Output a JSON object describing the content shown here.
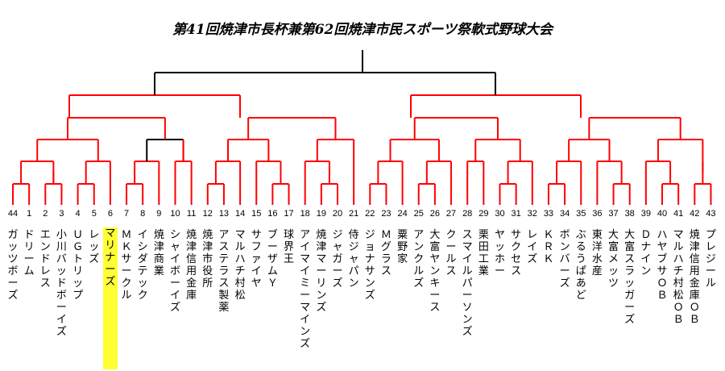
{
  "title": "第41回焼津市長杯兼第62回焼津市民スポーツ祭軟式野球大会",
  "colors": {
    "winner_path": "#ff0000",
    "bracket_line": "#000000",
    "highlight": "#ffff33"
  },
  "teams": [
    {
      "seed": "44",
      "name": "ガッツボーズ"
    },
    {
      "seed": "1",
      "name": "ドリーム"
    },
    {
      "seed": "2",
      "name": "エンドレス"
    },
    {
      "seed": "3",
      "name": "小川バッドボーイズ"
    },
    {
      "seed": "4",
      "name": "ＵＧトリップ"
    },
    {
      "seed": "5",
      "name": "レッズ"
    },
    {
      "seed": "6",
      "name": "マリナーズ",
      "highlight": true
    },
    {
      "seed": "7",
      "name": "ＭＫサークル"
    },
    {
      "seed": "8",
      "name": "イシダテック"
    },
    {
      "seed": "9",
      "name": "焼津商業"
    },
    {
      "seed": "10",
      "name": "シャイボーイズ"
    },
    {
      "seed": "11",
      "name": "焼津信用金庫"
    },
    {
      "seed": "12",
      "name": "焼津市役所"
    },
    {
      "seed": "13",
      "name": "アステラス製薬"
    },
    {
      "seed": "14",
      "name": "マルハチ村松"
    },
    {
      "seed": "15",
      "name": "サファイヤ"
    },
    {
      "seed": "16",
      "name": "ブーザムＹ"
    },
    {
      "seed": "17",
      "name": "球界王"
    },
    {
      "seed": "18",
      "name": "アイマイミーマインズ"
    },
    {
      "seed": "19",
      "name": "焼津マーリンズ"
    },
    {
      "seed": "20",
      "name": "ジャガーズ"
    },
    {
      "seed": "21",
      "name": "侍ジャパン"
    },
    {
      "seed": "22",
      "name": "ジョナサンズ"
    },
    {
      "seed": "23",
      "name": "Ｍグラス"
    },
    {
      "seed": "24",
      "name": "粟野家"
    },
    {
      "seed": "25",
      "name": "アンクルズ"
    },
    {
      "seed": "26",
      "name": "大富ヤンキース"
    },
    {
      "seed": "27",
      "name": "クールス"
    },
    {
      "seed": "28",
      "name": "スマイルパーソンズ"
    },
    {
      "seed": "29",
      "name": "栗田工業"
    },
    {
      "seed": "30",
      "name": "ヤッホー"
    },
    {
      "seed": "31",
      "name": "サクセス"
    },
    {
      "seed": "32",
      "name": "レイズ"
    },
    {
      "seed": "33",
      "name": "ＫＲＫ"
    },
    {
      "seed": "34",
      "name": "ボンバーズ"
    },
    {
      "seed": "35",
      "name": "ぶるうぱあど"
    },
    {
      "seed": "36",
      "name": "東洋水産"
    },
    {
      "seed": "37",
      "name": "大富メッツ"
    },
    {
      "seed": "38",
      "name": "大富スラッガーズ"
    },
    {
      "seed": "39",
      "name": "Ｄナイン"
    },
    {
      "seed": "40",
      "name": "ハヤブサＯＢ"
    },
    {
      "seed": "41",
      "name": "マルハチ村松ＯＢ"
    },
    {
      "seed": "42",
      "name": "焼津信用金庫ＯＢ"
    },
    {
      "seed": "43",
      "name": "プレジール"
    }
  ]
}
